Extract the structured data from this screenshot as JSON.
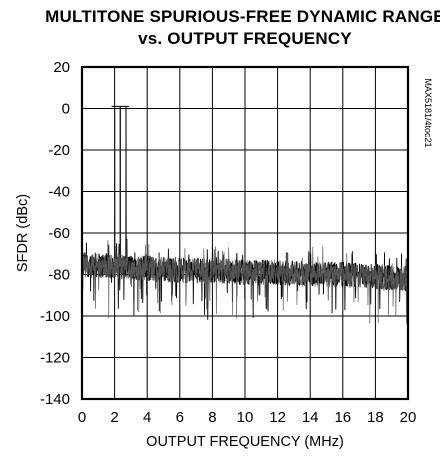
{
  "chart_data": {
    "type": "line",
    "title": [
      "MULTITONE SPURIOUS-FREE DYNAMIC RANGE",
      "vs. OUTPUT FREQUENCY"
    ],
    "xlabel": "OUTPUT FREQUENCY (MHz)",
    "ylabel": "SFDR (dBc)",
    "xlim": [
      0,
      20
    ],
    "ylim": [
      -140,
      20
    ],
    "x_ticks": [
      "0",
      "2",
      "4",
      "6",
      "8",
      "10",
      "12",
      "14",
      "16",
      "18",
      "20"
    ],
    "y_ticks": [
      "20",
      "0",
      "-20",
      "-40",
      "-60",
      "-80",
      "-100",
      "-120",
      "-140"
    ],
    "grid": true,
    "figure_id": "MAX5181/4toc21",
    "tones": [
      {
        "x": 2.0,
        "y": 1
      },
      {
        "x": 2.35,
        "y": 1
      },
      {
        "x": 2.7,
        "y": 1
      }
    ],
    "noise_floor": [
      {
        "x": 0,
        "y": -75
      },
      {
        "x": 2,
        "y": -76
      },
      {
        "x": 4,
        "y": -77
      },
      {
        "x": 6,
        "y": -78
      },
      {
        "x": 8,
        "y": -78
      },
      {
        "x": 10,
        "y": -79
      },
      {
        "x": 12,
        "y": -79
      },
      {
        "x": 14,
        "y": -80
      },
      {
        "x": 16,
        "y": -80
      },
      {
        "x": 18,
        "y": -81
      },
      {
        "x": 20,
        "y": -82
      }
    ],
    "noise_spread_db": 6
  }
}
